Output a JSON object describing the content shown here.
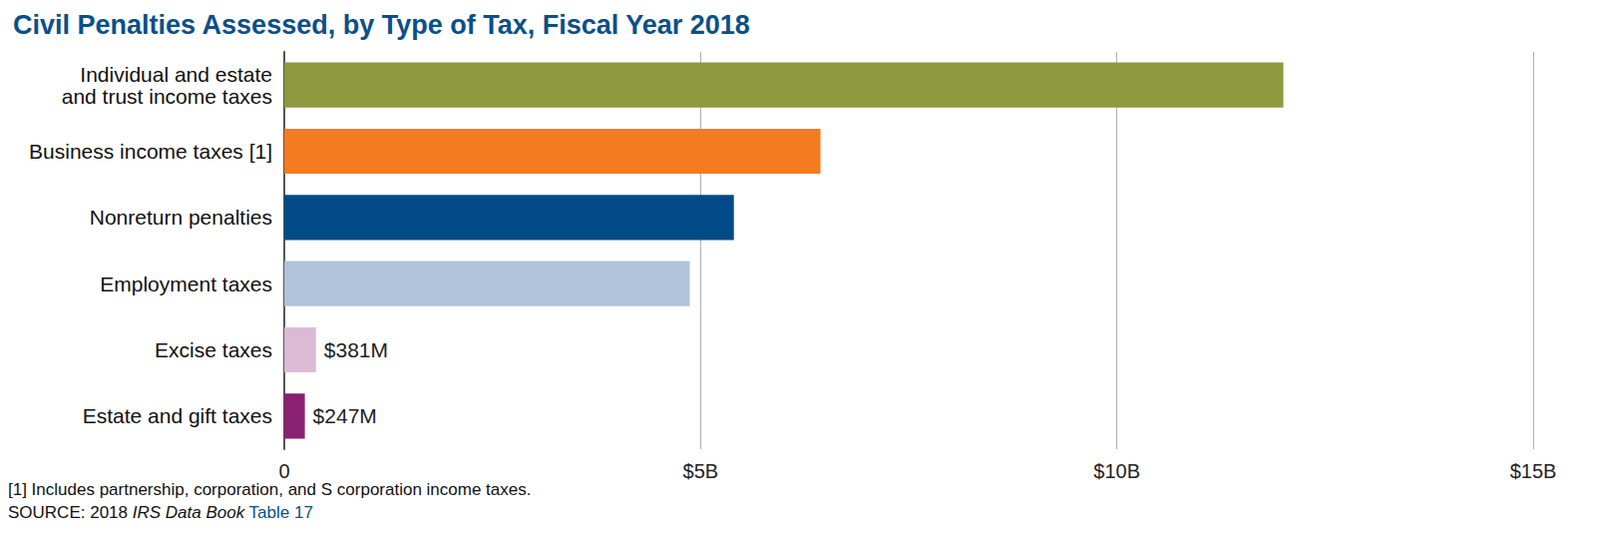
{
  "chart_data": {
    "type": "bar",
    "orientation": "horizontal",
    "title": "Civil Penalties Assessed, by Type of Tax, Fiscal Year 2018",
    "categories": [
      "Individual and estate\nand trust income taxes",
      "Business income taxes [1]",
      "Nonreturn penalties",
      "Employment taxes",
      "Excise taxes",
      "Estate and gift taxes"
    ],
    "values": [
      12.0,
      6.44,
      5.4,
      4.87,
      0.381,
      0.247
    ],
    "value_labels": [
      null,
      null,
      null,
      null,
      "$381M",
      "$247M"
    ],
    "data_labels": true,
    "colors": [
      "#8f9a3e",
      "#f47b20",
      "#004b87",
      "#b0c3db",
      "#dcbad6",
      "#8a2070"
    ],
    "xlim": [
      0,
      15
    ],
    "xticks": [
      0,
      {
        "value": 5,
        "label": "$5B"
      },
      {
        "value": 10,
        "label": "$10B"
      },
      {
        "value": 15,
        "label": "$15B"
      }
    ],
    "grid": true,
    "footnote": "[1] Includes partnership, corporation, and S corporation income taxes.",
    "source": [
      "SOURCE: 2018 ",
      "IRS Data Book",
      " Table 17"
    ]
  }
}
